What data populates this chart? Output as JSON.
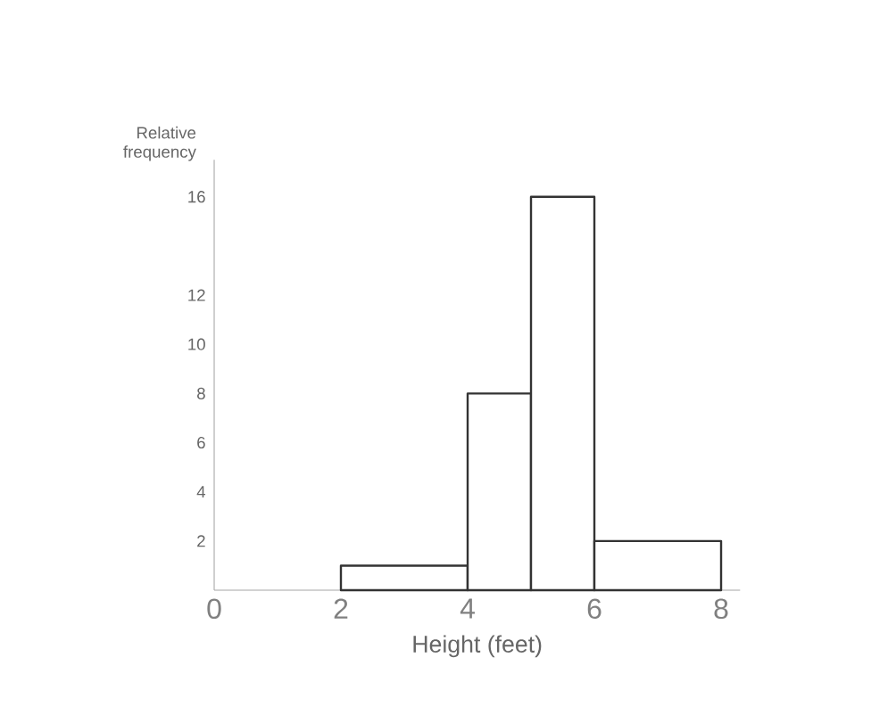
{
  "chart_data": {
    "type": "histogram",
    "xlabel": "Height (feet)",
    "ylabel": "Relative frequency",
    "bins": [
      2,
      4,
      5,
      6,
      8
    ],
    "values": [
      1,
      8,
      16,
      2
    ],
    "color": "#ffffff",
    "xlim": [
      0,
      8.3
    ],
    "ylim": [
      0,
      17.5
    ],
    "xticks": [
      0,
      2,
      4,
      6,
      8
    ],
    "yticks": [
      2,
      4,
      6,
      8,
      10,
      12,
      16
    ],
    "grid": false
  }
}
